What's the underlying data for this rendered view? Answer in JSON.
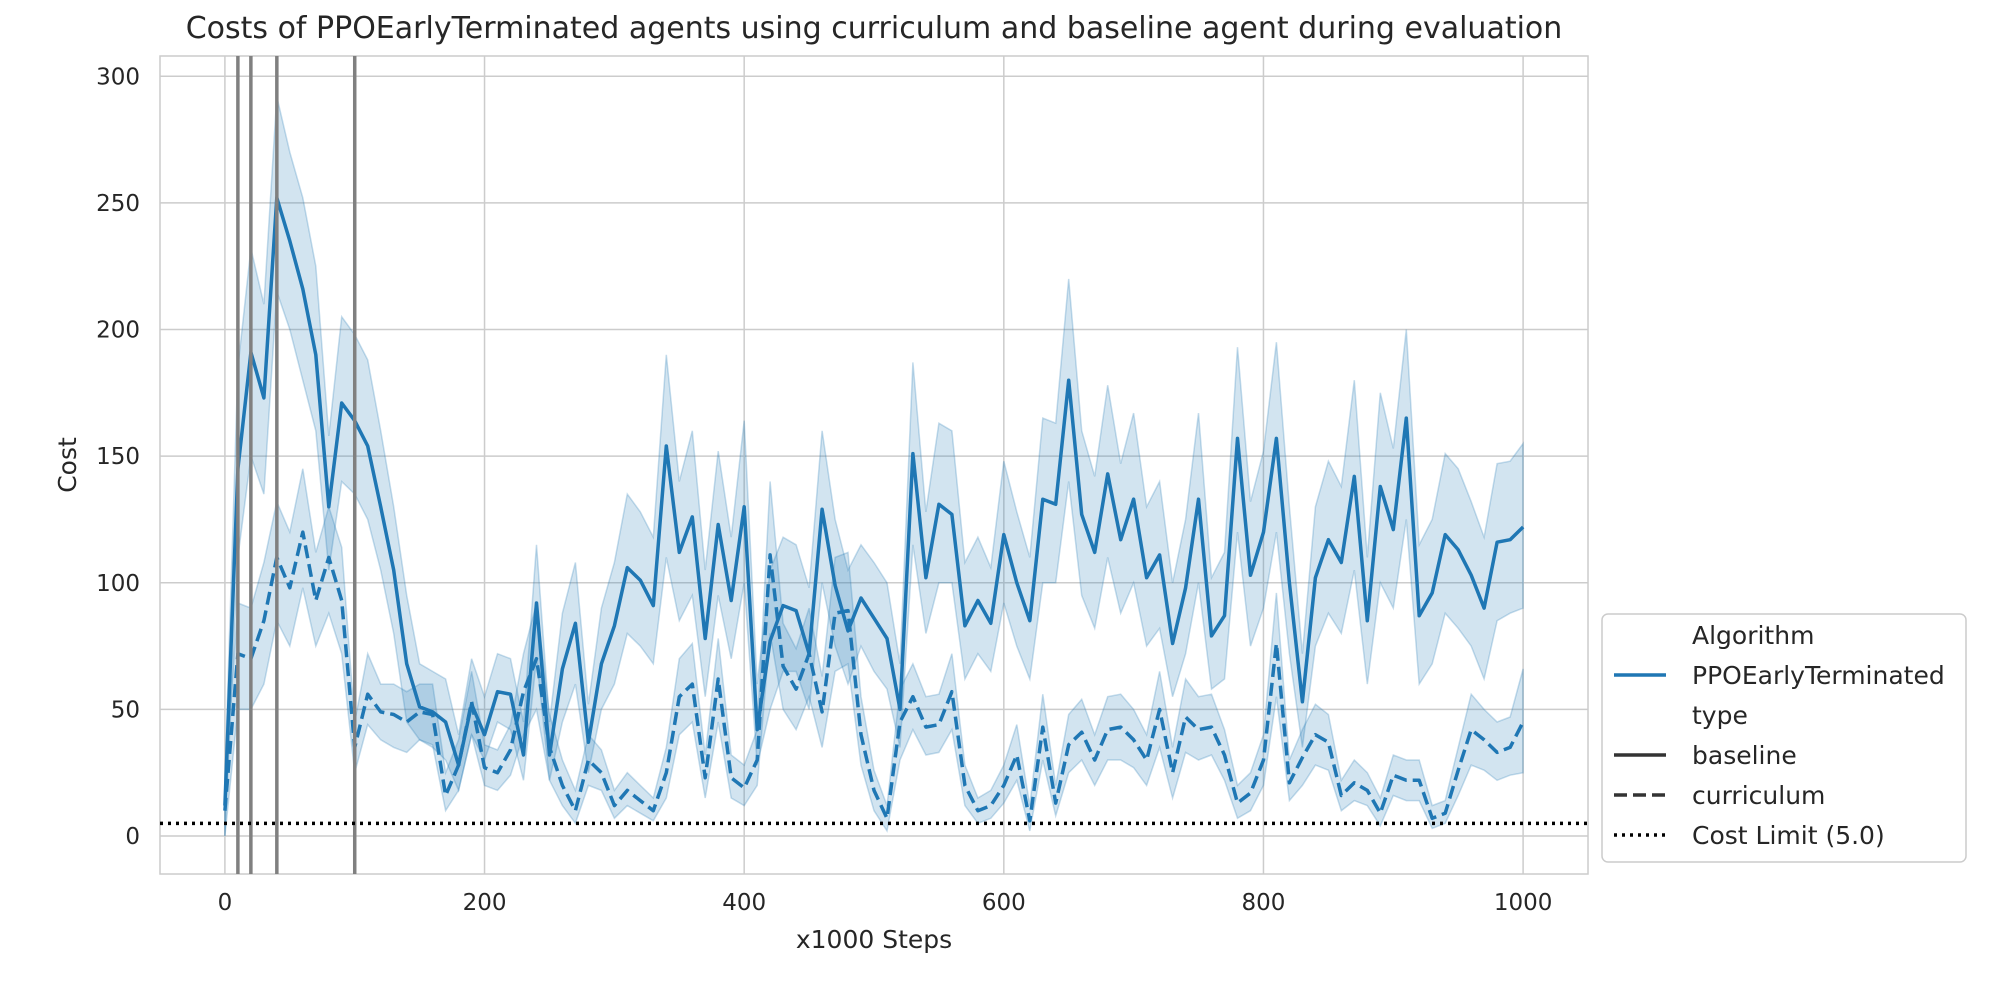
{
  "chart_data": {
    "type": "line",
    "title": "Costs of PPOEarlyTerminated agents using curriculum and baseline agent during evaluation",
    "xlabel": "x1000 Steps",
    "ylabel": "Cost",
    "xlim": [
      -50,
      1050
    ],
    "ylim": [
      -15,
      308
    ],
    "xticks": [
      0,
      200,
      400,
      600,
      800,
      1000
    ],
    "yticks": [
      0,
      50,
      100,
      150,
      200,
      250,
      300
    ],
    "grid": true,
    "legend_position": "right-bottom, outside plot",
    "cost_limit": 5.0,
    "vertical_markers": [
      10,
      20,
      40,
      100
    ],
    "colors": {
      "series": "#1f77b4",
      "band": "#1f77b4",
      "marker": "#808080",
      "limit": "#000000",
      "grid": "#cccccc"
    },
    "x": [
      0,
      10,
      20,
      30,
      40,
      50,
      60,
      70,
      80,
      90,
      100,
      110,
      120,
      130,
      140,
      150,
      160,
      170,
      180,
      190,
      200,
      210,
      220,
      230,
      240,
      250,
      260,
      270,
      280,
      290,
      300,
      310,
      320,
      330,
      340,
      350,
      360,
      370,
      380,
      390,
      400,
      410,
      420,
      430,
      440,
      450,
      460,
      470,
      480,
      490,
      500,
      510,
      520,
      530,
      540,
      550,
      560,
      570,
      580,
      590,
      600,
      610,
      620,
      630,
      640,
      650,
      660,
      670,
      680,
      690,
      700,
      710,
      720,
      730,
      740,
      750,
      760,
      770,
      780,
      790,
      800,
      810,
      820,
      830,
      840,
      850,
      860,
      870,
      880,
      890,
      900,
      910,
      920,
      930,
      940,
      950,
      960,
      970,
      980,
      990,
      1000
    ],
    "series": [
      {
        "name": "baseline",
        "linestyle": "solid",
        "values": [
          12,
          145,
          191,
          173,
          252,
          235,
          216,
          190,
          130,
          171,
          164,
          154,
          130,
          105,
          68,
          51,
          49,
          45,
          28,
          52,
          40,
          57,
          56,
          32,
          92,
          32,
          66,
          84,
          37,
          68,
          83,
          106,
          101,
          91,
          154,
          112,
          126,
          78,
          123,
          93,
          130,
          42,
          77,
          91,
          89,
          72,
          129,
          99,
          81,
          94,
          86,
          78,
          50,
          151,
          102,
          131,
          127,
          83,
          93,
          84,
          119,
          100,
          85,
          133,
          131,
          180,
          127,
          112,
          143,
          117,
          133,
          102,
          111,
          76,
          98,
          133,
          79,
          87,
          157,
          103,
          120,
          157,
          100,
          53,
          102,
          117,
          108,
          142,
          85,
          138,
          121,
          165,
          87,
          96,
          119,
          113,
          103,
          90,
          116,
          117,
          122
        ],
        "lower": [
          0,
          110,
          150,
          135,
          215,
          200,
          180,
          160,
          105,
          140,
          135,
          125,
          105,
          80,
          45,
          38,
          35,
          30,
          18,
          40,
          30,
          45,
          42,
          22,
          70,
          22,
          45,
          60,
          25,
          50,
          60,
          80,
          75,
          68,
          110,
          85,
          95,
          55,
          95,
          70,
          100,
          28,
          50,
          65,
          65,
          50,
          100,
          75,
          60,
          75,
          65,
          58,
          35,
          115,
          80,
          100,
          100,
          62,
          72,
          65,
          92,
          75,
          62,
          100,
          100,
          140,
          95,
          82,
          110,
          88,
          100,
          75,
          82,
          55,
          72,
          100,
          58,
          62,
          120,
          75,
          90,
          120,
          72,
          35,
          75,
          88,
          80,
          105,
          60,
          100,
          90,
          125,
          60,
          68,
          88,
          82,
          75,
          62,
          85,
          88,
          90
        ],
        "upper": [
          22,
          185,
          232,
          210,
          292,
          270,
          252,
          225,
          158,
          205,
          198,
          188,
          160,
          130,
          95,
          68,
          65,
          62,
          40,
          70,
          55,
          72,
          70,
          45,
          115,
          45,
          88,
          108,
          52,
          90,
          108,
          135,
          128,
          118,
          190,
          140,
          160,
          105,
          152,
          118,
          164,
          60,
          105,
          118,
          115,
          98,
          160,
          125,
          105,
          115,
          108,
          100,
          68,
          187,
          128,
          163,
          160,
          108,
          118,
          106,
          148,
          128,
          110,
          165,
          163,
          220,
          160,
          142,
          178,
          147,
          167,
          130,
          140,
          100,
          125,
          167,
          102,
          112,
          193,
          132,
          152,
          195,
          130,
          72,
          130,
          148,
          138,
          180,
          110,
          175,
          153,
          200,
          115,
          125,
          151,
          145,
          132,
          118,
          147,
          148,
          155
        ]
      },
      {
        "name": "curriculum",
        "linestyle": "dashed",
        "values": [
          10,
          72,
          70,
          85,
          110,
          98,
          120,
          93,
          110,
          93,
          35,
          56,
          49,
          48,
          45,
          49,
          48,
          16,
          28,
          53,
          27,
          25,
          34,
          57,
          70,
          35,
          20,
          10,
          30,
          25,
          12,
          18,
          14,
          10,
          25,
          55,
          60,
          23,
          62,
          23,
          19,
          30,
          111,
          67,
          58,
          72,
          49,
          88,
          89,
          40,
          18,
          7,
          45,
          55,
          43,
          44,
          57,
          20,
          10,
          12,
          20,
          32,
          6,
          43,
          13,
          36,
          41,
          30,
          42,
          43,
          38,
          30,
          50,
          25,
          47,
          42,
          43,
          32,
          13,
          17,
          30,
          76,
          21,
          31,
          40,
          37,
          16,
          21,
          18,
          9,
          24,
          22,
          22,
          7,
          9,
          26,
          42,
          38,
          33,
          35,
          45
        ],
        "lower": [
          0,
          50,
          50,
          60,
          85,
          75,
          98,
          75,
          88,
          72,
          25,
          44,
          38,
          35,
          33,
          38,
          36,
          10,
          18,
          40,
          20,
          18,
          24,
          40,
          50,
          22,
          12,
          5,
          20,
          18,
          7,
          12,
          9,
          6,
          15,
          40,
          45,
          15,
          45,
          15,
          12,
          20,
          80,
          50,
          42,
          55,
          35,
          65,
          68,
          28,
          10,
          2,
          30,
          42,
          32,
          33,
          42,
          12,
          5,
          7,
          13,
          22,
          2,
          30,
          8,
          25,
          30,
          20,
          30,
          30,
          27,
          20,
          35,
          15,
          33,
          30,
          32,
          22,
          7,
          10,
          20,
          55,
          14,
          20,
          28,
          26,
          10,
          14,
          12,
          4,
          16,
          14,
          14,
          3,
          5,
          16,
          28,
          26,
          22,
          24,
          25
        ],
        "upper": [
          20,
          92,
          90,
          108,
          132,
          120,
          145,
          112,
          130,
          114,
          45,
          72,
          60,
          60,
          57,
          60,
          60,
          25,
          38,
          65,
          36,
          34,
          44,
          72,
          92,
          48,
          30,
          18,
          40,
          34,
          18,
          25,
          20,
          15,
          35,
          70,
          76,
          32,
          78,
          32,
          28,
          42,
          140,
          84,
          74,
          90,
          63,
          110,
          112,
          55,
          26,
          12,
          58,
          68,
          55,
          56,
          72,
          28,
          15,
          18,
          28,
          44,
          12,
          56,
          20,
          48,
          54,
          40,
          55,
          56,
          50,
          40,
          65,
          35,
          62,
          55,
          56,
          42,
          20,
          25,
          40,
          96,
          30,
          42,
          52,
          48,
          22,
          30,
          25,
          15,
          32,
          30,
          30,
          12,
          14,
          35,
          56,
          50,
          45,
          47,
          66
        ]
      }
    ],
    "legend": {
      "entries": [
        {
          "label": "Algorithm",
          "kind": "header"
        },
        {
          "label": "PPOEarlyTerminated",
          "kind": "line",
          "style": "solid",
          "color": "#1f77b4"
        },
        {
          "label": "type",
          "kind": "header"
        },
        {
          "label": "baseline",
          "kind": "line",
          "style": "solid",
          "color": "#333333"
        },
        {
          "label": "curriculum",
          "kind": "line",
          "style": "dashed",
          "color": "#333333"
        },
        {
          "label": "Cost Limit (5.0)",
          "kind": "line",
          "style": "dotted",
          "color": "#000000"
        }
      ]
    }
  }
}
